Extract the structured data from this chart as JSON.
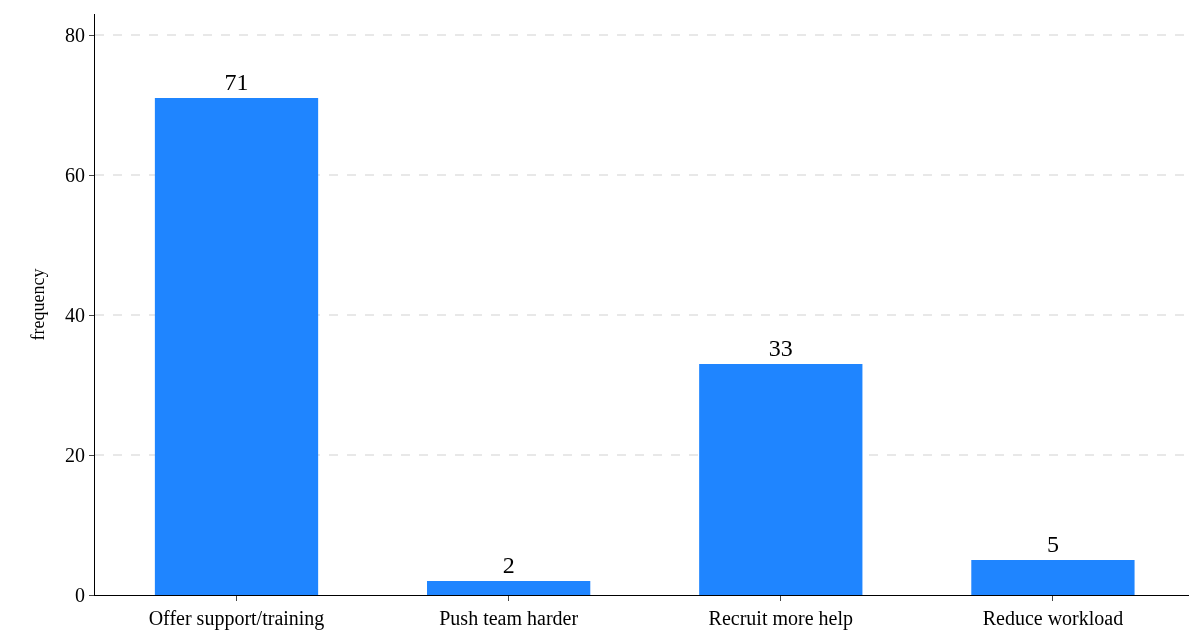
{
  "chart_data": {
    "type": "bar",
    "ylabel": "frequency",
    "categories": [
      "Offer support/training",
      "Push team harder",
      "Recruit more help",
      "Reduce workload"
    ],
    "values": [
      71,
      2,
      33,
      5
    ],
    "color": "#1f85ff",
    "ylim": [
      0,
      83
    ],
    "yticks": [
      0,
      20,
      40,
      60,
      80
    ],
    "grid": "y",
    "data_labels": true,
    "legend": false
  }
}
